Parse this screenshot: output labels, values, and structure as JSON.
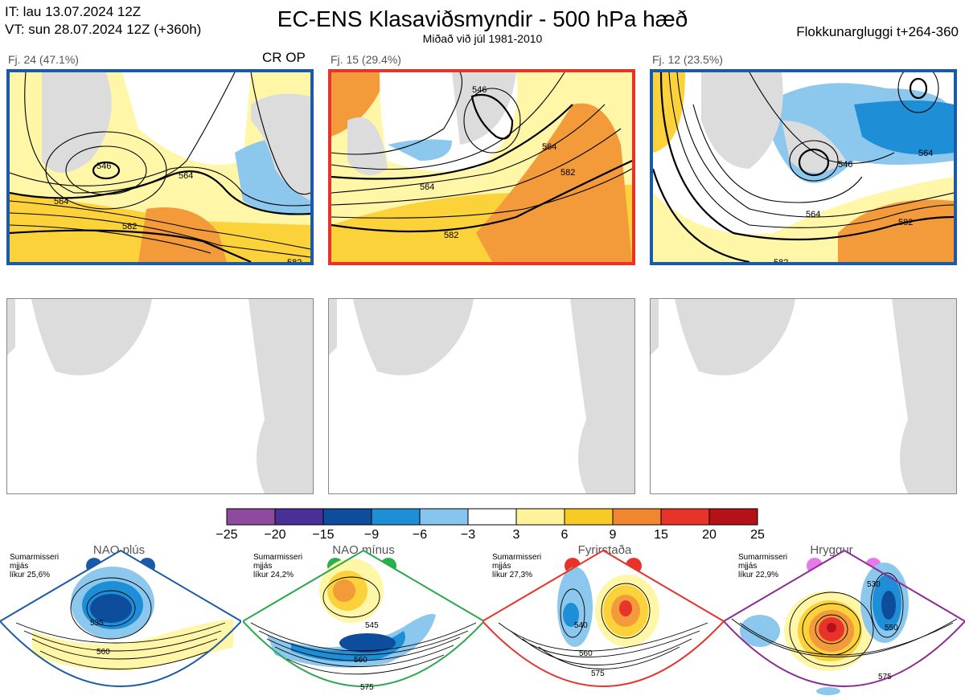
{
  "header": {
    "it_line": "IT: lau 13.07.2024 12Z",
    "vt_line": "VT: sun 28.07.2024 12Z  (+360h)",
    "title": "EC-ENS Klasaviðsmyndir - 500 hPa hæð",
    "subtitle": "Miðað við júl 1981-2010",
    "window": "Flokkunargluggi t+264-360"
  },
  "clusters": [
    {
      "label": "Fj. 24 (47.1%)",
      "tag": "CR OP",
      "border_color": "#1b5aa6",
      "contours": [
        "546",
        "564",
        "582",
        "564",
        "582"
      ]
    },
    {
      "label": "Fj. 15 (29.4%)",
      "tag": "",
      "border_color": "#e8332a",
      "contours": [
        "546",
        "564",
        "564",
        "582",
        "582"
      ]
    },
    {
      "label": "Fj. 12 (23.5%)",
      "tag": "",
      "border_color": "#1b5aa6",
      "contours": [
        "564",
        "546",
        "564",
        "564",
        "582",
        "582"
      ]
    }
  ],
  "colorbar": {
    "ticks": [
      "−25",
      "−20",
      "−15",
      "−9",
      "−6",
      "−3",
      "3",
      "6",
      "9",
      "15",
      "20",
      "25"
    ],
    "colors": [
      "#8c4b9e",
      "#4a2f97",
      "#0d4d9c",
      "#1e8fd6",
      "#86c5ee",
      "#ffffff",
      "#fff29a",
      "#f8ca27",
      "#f0862f",
      "#e8332a",
      "#b51118"
    ]
  },
  "regimes": [
    {
      "name": "NAO plús",
      "info": [
        "Sumarmisseri",
        "mjjás",
        "líkur 25,6%"
      ],
      "color": "#1b5aa6",
      "dot_color": "#1a5aa8",
      "contours": [
        "535",
        "560"
      ]
    },
    {
      "name": "NAO mínus",
      "info": [
        "Sumarmisseri",
        "mjjás",
        "líkur 24,2%"
      ],
      "color": "#2aa84a",
      "dot_color": "#27b04d",
      "contours": [
        "545",
        "560",
        "575"
      ]
    },
    {
      "name": "Fyrirstaða",
      "info": [
        "Sumarmisseri",
        "mjjás",
        "líkur 27,3%"
      ],
      "color": "#e8332a",
      "dot_color": "#e8332a",
      "contours": [
        "540",
        "560",
        "575"
      ]
    },
    {
      "name": "Hryggur",
      "info": [
        "Sumarmisseri",
        "mjjás",
        "líkur 22,9%"
      ],
      "color": "#8c2b93",
      "dot_color": "#e57ae8",
      "contours": [
        "530",
        "550",
        "575"
      ]
    }
  ]
}
